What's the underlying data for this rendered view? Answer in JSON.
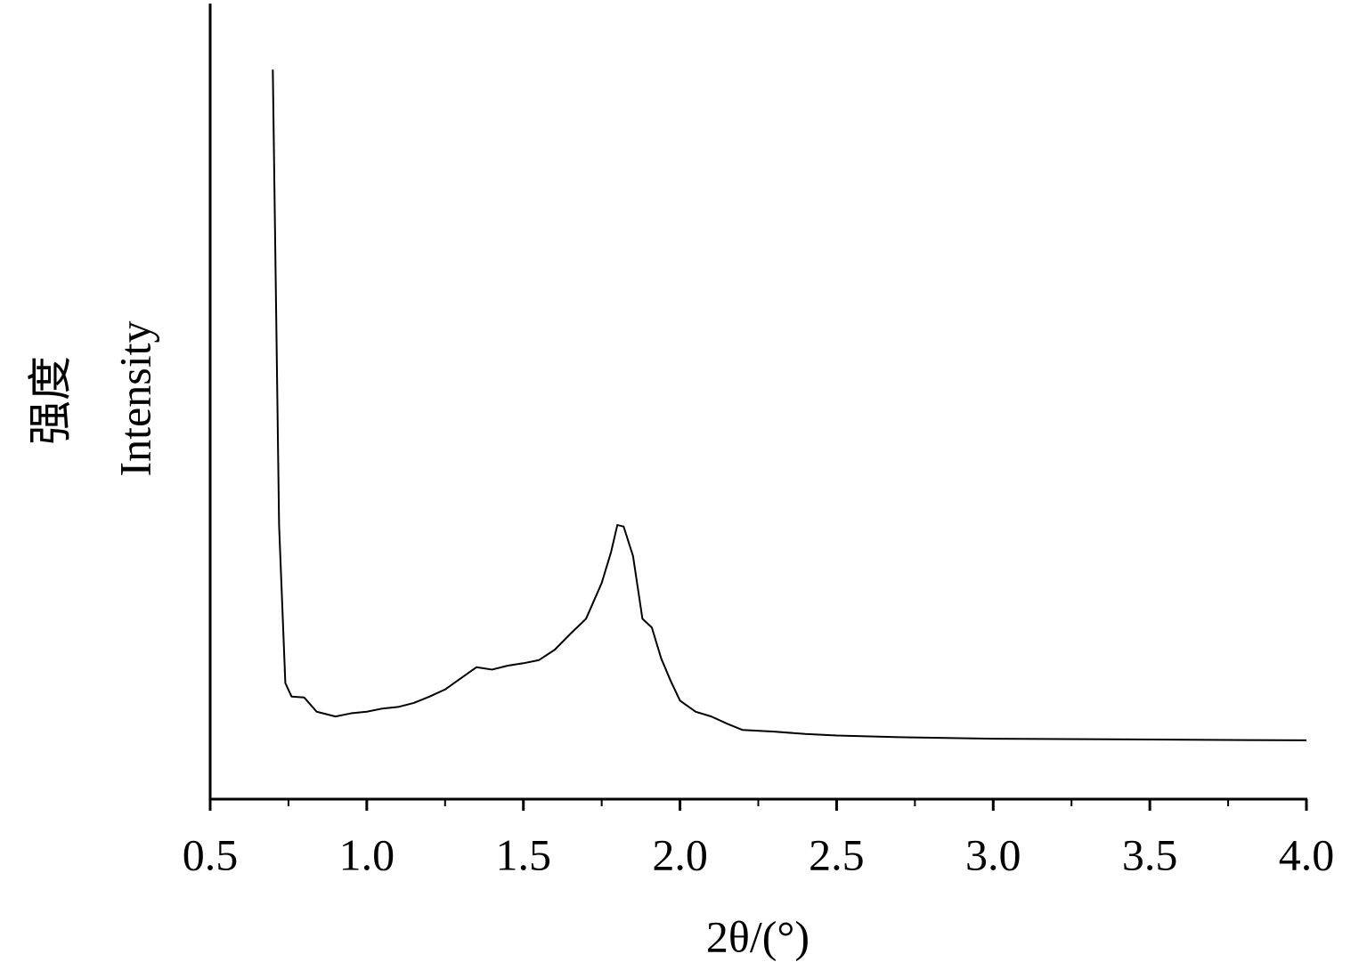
{
  "chart_data": {
    "type": "line",
    "xlabel": "2θ/(°)",
    "ylabel": "强度",
    "ylabel_en": "Intensity",
    "xlim": [
      0.5,
      4.0
    ],
    "ylim": [
      0,
      100
    ],
    "xticks": [
      0.5,
      {
        "value": 1.0,
        "label": "1.0"
      },
      1.5,
      {
        "value": 2.0,
        "label": "2.0"
      },
      2.5,
      {
        "value": 3.0,
        "label": "3.0"
      },
      3.5,
      {
        "value": 4.0,
        "label": "4.0"
      }
    ],
    "xminorticks": [
      0.75,
      1.25,
      1.75,
      2.25,
      2.75,
      3.25,
      3.75
    ],
    "color": "#000000",
    "x": [
      0.7,
      0.72,
      0.74,
      0.76,
      0.8,
      0.84,
      0.9,
      0.95,
      1.0,
      1.05,
      1.1,
      1.15,
      1.2,
      1.25,
      1.3,
      1.35,
      1.4,
      1.45,
      1.5,
      1.55,
      1.6,
      1.65,
      1.7,
      1.75,
      1.78,
      1.8,
      1.82,
      1.85,
      1.88,
      1.91,
      1.94,
      1.97,
      2.0,
      2.05,
      2.1,
      2.15,
      2.2,
      2.3,
      2.4,
      2.5,
      2.7,
      3.0,
      3.5,
      4.0
    ],
    "values": [
      91.8,
      34.5,
      14.6,
      12.9,
      12.8,
      11.0,
      10.4,
      10.8,
      11.0,
      11.4,
      11.6,
      12.1,
      12.9,
      13.8,
      15.2,
      16.6,
      16.3,
      16.8,
      17.1,
      17.5,
      18.8,
      20.8,
      22.7,
      27.2,
      31.1,
      34.5,
      34.3,
      30.6,
      22.7,
      21.6,
      17.7,
      14.9,
      12.4,
      11.0,
      10.4,
      9.5,
      8.7,
      8.5,
      8.2,
      8.0,
      7.8,
      7.6,
      7.5,
      7.4
    ]
  }
}
